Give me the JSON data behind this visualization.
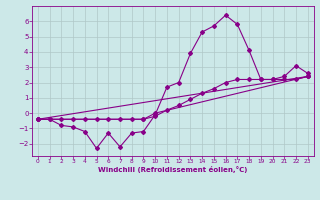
{
  "xlabel": "Windchill (Refroidissement éolien,°C)",
  "bg_color": "#cce8e8",
  "grid_color": "#b0c8c8",
  "line_color": "#880088",
  "xlim": [
    -0.5,
    23.5
  ],
  "ylim": [
    -2.8,
    7.0
  ],
  "xticks": [
    0,
    1,
    2,
    3,
    4,
    5,
    6,
    7,
    8,
    9,
    10,
    11,
    12,
    13,
    14,
    15,
    16,
    17,
    18,
    19,
    20,
    21,
    22,
    23
  ],
  "yticks": [
    -2,
    -1,
    0,
    1,
    2,
    3,
    4,
    5,
    6
  ],
  "line1_x": [
    0,
    1,
    2,
    3,
    4,
    5,
    6,
    7,
    8,
    9,
    10,
    11,
    12,
    13,
    14,
    15,
    16,
    17,
    18,
    19,
    20,
    21,
    22,
    23
  ],
  "line1_y": [
    -0.4,
    -0.4,
    -0.8,
    -0.9,
    -1.2,
    -2.3,
    -1.3,
    -2.2,
    -1.3,
    -1.2,
    -0.1,
    1.7,
    2.0,
    3.9,
    5.3,
    5.7,
    6.4,
    5.8,
    4.1,
    2.2,
    2.2,
    2.4,
    3.1,
    2.6
  ],
  "line2_x": [
    0,
    1,
    2,
    3,
    4,
    5,
    6,
    7,
    8,
    9,
    10,
    11,
    12,
    13,
    14,
    15,
    16,
    17,
    18,
    19,
    20,
    21,
    22,
    23
  ],
  "line2_y": [
    -0.4,
    -0.4,
    -0.4,
    -0.4,
    -0.4,
    -0.4,
    -0.4,
    -0.4,
    -0.4,
    -0.4,
    -0.2,
    0.2,
    0.5,
    0.9,
    1.3,
    1.6,
    2.0,
    2.2,
    2.2,
    2.2,
    2.2,
    2.2,
    2.2,
    2.4
  ],
  "line3_x": [
    0,
    23
  ],
  "line3_y": [
    -0.4,
    2.4
  ],
  "line4_x": [
    0,
    9,
    10,
    23
  ],
  "line4_y": [
    -0.4,
    -0.4,
    0.0,
    2.4
  ]
}
